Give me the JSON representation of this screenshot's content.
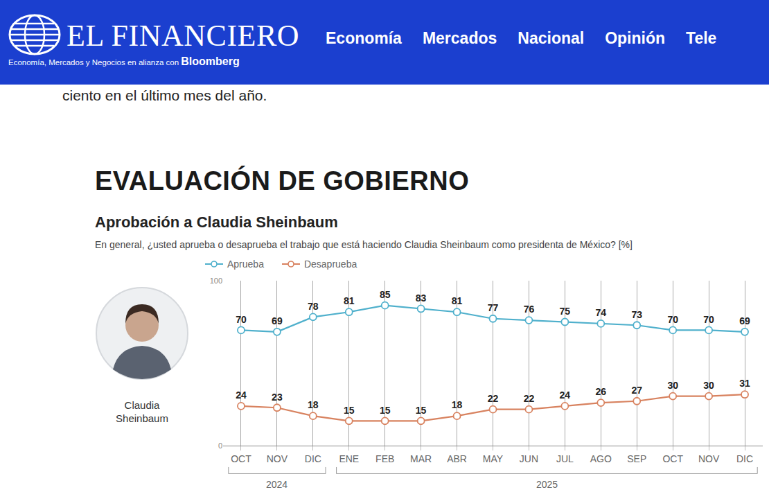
{
  "header": {
    "logo": "EL FINANCIERO",
    "tagline": "Economía, Mercados y Negocios en alianza con",
    "partner": "Bloomberg",
    "nav": [
      "Economía",
      "Mercados",
      "Nacional",
      "Opinión",
      "Tele"
    ]
  },
  "article": {
    "text": "ciento en el último mes del año."
  },
  "chart_data": {
    "type": "line",
    "title": "EVALUACIÓN DE GOBIERNO",
    "subtitle": "Aprobación a Claudia Sheinbaum",
    "question": "En general, ¿usted aprueba o desaprueba el trabajo que está haciendo Claudia Sheinbaum como presidenta de México? [%]",
    "photo_caption": "Claudia Sheinbaum",
    "categories": [
      "OCT",
      "NOV",
      "DIC",
      "ENE",
      "FEB",
      "MAR",
      "ABR",
      "MAY",
      "JUN",
      "JUL",
      "AGO",
      "SEP",
      "OCT",
      "NOV",
      "DIC"
    ],
    "year_groups": [
      {
        "label": "2024",
        "months": 3
      },
      {
        "label": "2025",
        "months": 12
      }
    ],
    "series": [
      {
        "name": "Aprueba",
        "color": "#4fb0cc",
        "values": [
          70,
          69,
          78,
          81,
          85,
          83,
          81,
          77,
          76,
          75,
          74,
          73,
          70,
          70,
          69
        ]
      },
      {
        "name": "Desaprueba",
        "color": "#d8825f",
        "values": [
          24,
          23,
          18,
          15,
          15,
          15,
          18,
          22,
          22,
          24,
          26,
          27,
          30,
          30,
          31
        ]
      }
    ],
    "ylim": [
      0,
      100
    ],
    "yticks": [
      0,
      100
    ],
    "grid": true,
    "legend": "top left",
    "data_labels": true,
    "marker": "circle-open"
  }
}
